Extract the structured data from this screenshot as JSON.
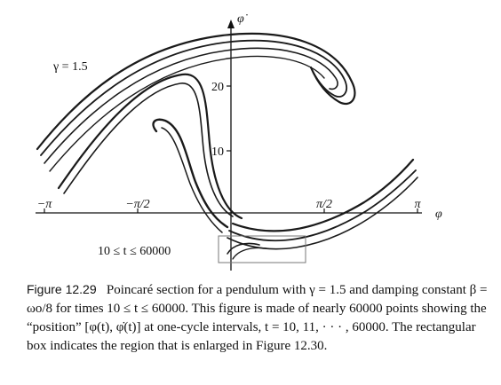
{
  "figure": {
    "label_gamma": "γ = 1.5",
    "label_time": "10 ≤ t ≤ 60000",
    "axis": {
      "x_label": "φ",
      "y_label": "φ̇",
      "x_ticks": [
        "−π",
        "−π/2",
        "π/2",
        "π"
      ],
      "y_ticks": [
        "10",
        "20"
      ]
    }
  },
  "caption": {
    "label": "Figure 12.29",
    "text": "Poincaré section for a pendulum with γ = 1.5 and damping constant β = ωo/8 for times 10 ≤ t ≤ 60000. This figure is made of nearly 60000 points showing the “position” [φ(t), φ̇(t)] at one-cycle intervals, t = 10, 11, · · · , 60000. The rectangular box indicates the region that is enlarged in Figure 12.30."
  }
}
